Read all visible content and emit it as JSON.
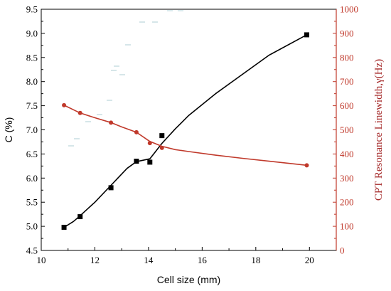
{
  "chart_data": {
    "type": "line",
    "title": "",
    "xlabel": "Cell size (mm)",
    "ylabel_left": "C (%)",
    "ylabel_right": "CPT Resonance Linewidth,γ(Hz)",
    "xlim": [
      10,
      21
    ],
    "xticks": [
      "10",
      "12",
      "14",
      "16",
      "18",
      "20"
    ],
    "ylim_left": [
      4.5,
      9.5
    ],
    "yticks_left": [
      "4.5",
      "5.0",
      "5.5",
      "6.0",
      "6.5",
      "7.0",
      "7.5",
      "8.0",
      "8.5",
      "9.0",
      "9.5"
    ],
    "ylim_right": [
      0,
      1000
    ],
    "yticks_right": [
      "0",
      "100",
      "200",
      "300",
      "400",
      "500",
      "600",
      "700",
      "800",
      "900",
      "1000"
    ],
    "grid": false,
    "series": [
      {
        "axis": "left",
        "marker": "square",
        "color": "#000000",
        "x": [
          10.85,
          11.45,
          12.6,
          13.55,
          14.05,
          14.5,
          19.9
        ],
        "y": [
          4.98,
          5.2,
          5.8,
          6.35,
          6.33,
          6.88,
          8.97
        ],
        "curve_x": [
          10.85,
          11.2,
          11.45,
          12.0,
          12.6,
          13.2,
          13.55,
          14.05,
          14.5,
          15.0,
          15.5,
          16.5,
          17.5,
          18.5,
          19.9
        ],
        "curve_y": [
          4.98,
          5.1,
          5.22,
          5.5,
          5.85,
          6.2,
          6.34,
          6.4,
          6.72,
          7.02,
          7.3,
          7.75,
          8.15,
          8.55,
          8.97
        ]
      },
      {
        "axis": "right",
        "marker": "circle",
        "color": "#c0392b",
        "x": [
          10.85,
          11.45,
          12.6,
          13.55,
          14.05,
          14.5,
          19.9
        ],
        "y": [
          602,
          570,
          530,
          490,
          445,
          425,
          353
        ],
        "curve_x": [
          10.85,
          11.45,
          12.0,
          12.6,
          13.0,
          13.55,
          14.05,
          14.5,
          15.0,
          15.5,
          16.5,
          17.5,
          18.5,
          19.9
        ],
        "curve_y": [
          602,
          570,
          550,
          530,
          512,
          490,
          452,
          432,
          418,
          410,
          395,
          382,
          370,
          353
        ]
      }
    ]
  },
  "colors": {
    "left_axis": "#000000",
    "right_axis": "#c0392b",
    "right_axis_label": "#a52a2a"
  }
}
